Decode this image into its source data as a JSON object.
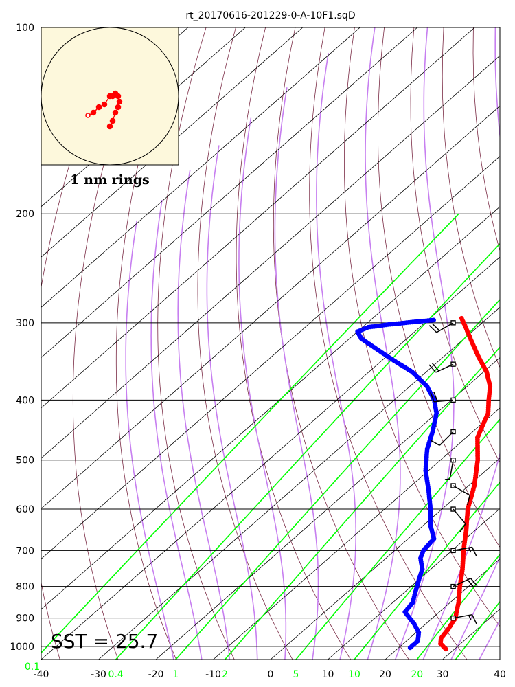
{
  "chart_data": {
    "type": "skew-t",
    "title": "rt_20170616-201229-0-A-10F1.sqD",
    "pressure_ticks": [
      "100",
      "200",
      "300",
      "400",
      "500",
      "600",
      "700",
      "800",
      "900",
      "1000"
    ],
    "temperature_ticks": [
      "-40",
      "-30",
      "-20",
      "-10",
      "0",
      "10",
      "20",
      "30",
      "40"
    ],
    "mixing_ratio_labels": [
      "0.1",
      "0.4",
      "1",
      "2",
      "5",
      "10",
      "20"
    ],
    "sst_label": "SST = 25.7",
    "hodograph_label": "1 nm rings",
    "xlim": [
      -40,
      40
    ],
    "ylim": [
      1050,
      100
    ],
    "temperature_profile": [
      {
        "p": 1010,
        "t": 28.5
      },
      {
        "p": 990,
        "t": 26.5
      },
      {
        "p": 970,
        "t": 25.5
      },
      {
        "p": 940,
        "t": 25.0
      },
      {
        "p": 900,
        "t": 24.0
      },
      {
        "p": 850,
        "t": 21.5
      },
      {
        "p": 800,
        "t": 18.5
      },
      {
        "p": 750,
        "t": 15.5
      },
      {
        "p": 700,
        "t": 12.0
      },
      {
        "p": 650,
        "t": 8.5
      },
      {
        "p": 600,
        "t": 4.5
      },
      {
        "p": 550,
        "t": 1.0
      },
      {
        "p": 500,
        "t": -3.5
      },
      {
        "p": 460,
        "t": -8.0
      },
      {
        "p": 440,
        "t": -9.5
      },
      {
        "p": 420,
        "t": -11.0
      },
      {
        "p": 400,
        "t": -13.5
      },
      {
        "p": 380,
        "t": -16.0
      },
      {
        "p": 360,
        "t": -19.5
      },
      {
        "p": 340,
        "t": -24.0
      },
      {
        "p": 320,
        "t": -28.5
      },
      {
        "p": 305,
        "t": -32.0
      },
      {
        "p": 295,
        "t": -34.5
      }
    ],
    "dewpoint_profile": [
      {
        "p": 1005,
        "t": 22.0
      },
      {
        "p": 980,
        "t": 22.0
      },
      {
        "p": 950,
        "t": 20.5
      },
      {
        "p": 920,
        "t": 18.0
      },
      {
        "p": 880,
        "t": 14.0
      },
      {
        "p": 850,
        "t": 13.5
      },
      {
        "p": 820,
        "t": 12.0
      },
      {
        "p": 780,
        "t": 10.0
      },
      {
        "p": 750,
        "t": 8.5
      },
      {
        "p": 720,
        "t": 6.0
      },
      {
        "p": 700,
        "t": 5.0
      },
      {
        "p": 670,
        "t": 4.5
      },
      {
        "p": 640,
        "t": 1.5
      },
      {
        "p": 600,
        "t": -2.0
      },
      {
        "p": 560,
        "t": -6.0
      },
      {
        "p": 520,
        "t": -10.5
      },
      {
        "p": 480,
        "t": -14.5
      },
      {
        "p": 450,
        "t": -17.0
      },
      {
        "p": 420,
        "t": -20.0
      },
      {
        "p": 400,
        "t": -23.0
      },
      {
        "p": 380,
        "t": -27.0
      },
      {
        "p": 360,
        "t": -32.5
      },
      {
        "p": 345,
        "t": -38.0
      },
      {
        "p": 330,
        "t": -43.5
      },
      {
        "p": 318,
        "t": -48.0
      },
      {
        "p": 310,
        "t": -50.0
      },
      {
        "p": 305,
        "t": -49.0
      },
      {
        "p": 302,
        "t": -46.0
      },
      {
        "p": 299,
        "t": -42.0
      },
      {
        "p": 297,
        "t": -39.0
      }
    ],
    "hodograph": [
      {
        "u": 0.0,
        "v": -1.1
      },
      {
        "u": 0.1,
        "v": -0.9
      },
      {
        "u": 0.2,
        "v": -0.6
      },
      {
        "u": 0.3,
        "v": -0.4
      },
      {
        "u": 0.35,
        "v": -0.2
      },
      {
        "u": 0.3,
        "v": 0.0
      },
      {
        "u": 0.2,
        "v": 0.1
      },
      {
        "u": 0.1,
        "v": 0.0
      },
      {
        "u": 0.0,
        "v": 0.0
      },
      {
        "u": -0.2,
        "v": -0.3
      },
      {
        "u": -0.4,
        "v": -0.4
      },
      {
        "u": -0.6,
        "v": -0.6
      },
      {
        "u": -0.8,
        "v": -0.7
      }
    ],
    "wind_barbs": [
      {
        "p": 300,
        "dir": 240,
        "kt": 20
      },
      {
        "p": 350,
        "dir": 245,
        "kt": 20
      },
      {
        "p": 400,
        "dir": 265,
        "kt": 20
      },
      {
        "p": 450,
        "dir": 225,
        "kt": 10
      },
      {
        "p": 500,
        "dir": 190,
        "kt": 5
      },
      {
        "p": 550,
        "dir": 120,
        "kt": 10
      },
      {
        "p": 600,
        "dir": 140,
        "kt": 10
      },
      {
        "p": 700,
        "dir": 80,
        "kt": 15
      },
      {
        "p": 800,
        "dir": 65,
        "kt": 20
      },
      {
        "p": 900,
        "dir": 80,
        "kt": 15
      }
    ],
    "colors": {
      "temperature": "#ff0000",
      "dewpoint": "#0000ff",
      "mixing_ratio": "#00ff00",
      "moist_adiabat": "#c77ff0",
      "dry_adiabat": "#7a2a44",
      "isotherm": "#000000",
      "hodograph_bg": "#fdf8dc"
    }
  }
}
